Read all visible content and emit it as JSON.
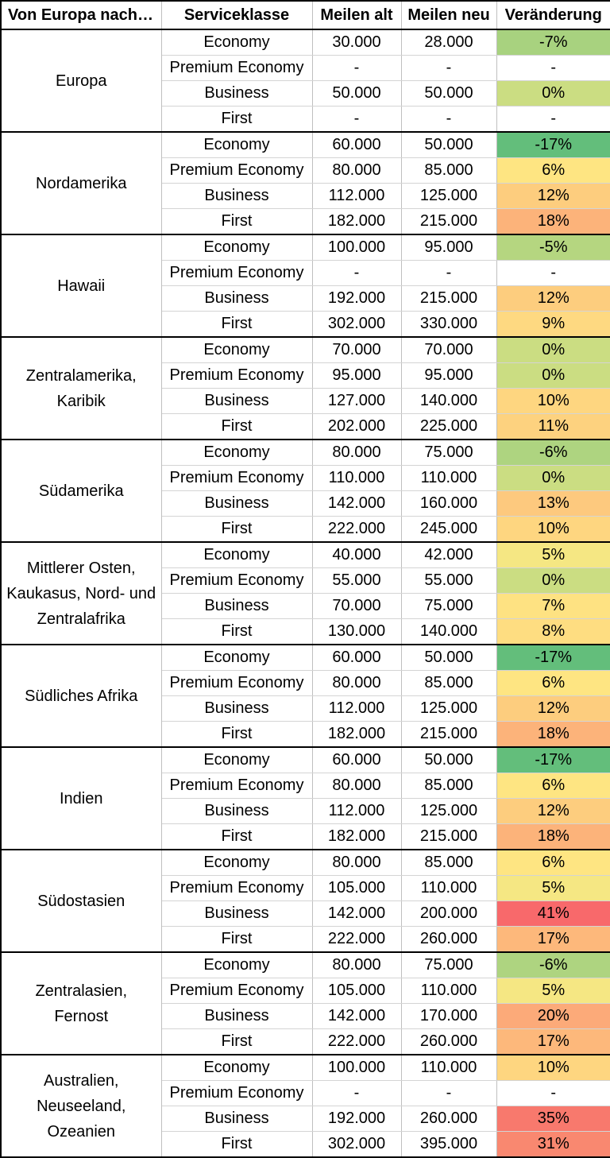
{
  "headers": [
    "Von Europa nach…",
    "Serviceklasse",
    "Meilen alt",
    "Meilen neu",
    "Veränderung"
  ],
  "color_scale": {
    "-17%": "#63be7b",
    "-7%": "#a8d27f",
    "-6%": "#aed480",
    "-5%": "#b5d680",
    "0%": "#cbdd82",
    "5%": "#f5e783",
    "6%": "#fee582",
    "7%": "#fee282",
    "8%": "#fedd81",
    "9%": "#fed981",
    "10%": "#fed680",
    "11%": "#fdd27f",
    "12%": "#fdcd7e",
    "13%": "#fdc97e",
    "17%": "#fdb87b",
    "18%": "#fcb37a",
    "20%": "#fcaa79",
    "31%": "#f98870",
    "35%": "#f8796d",
    "41%": "#f8696b",
    "empty": "#ffffff"
  },
  "groups": [
    {
      "region": "Europa",
      "rows": [
        {
          "class": "Economy",
          "old": "30.000",
          "new": "28.000",
          "change": "-7%"
        },
        {
          "class": "Premium Economy",
          "old": "-",
          "new": "-",
          "change": "-"
        },
        {
          "class": "Business",
          "old": "50.000",
          "new": "50.000",
          "change": "0%"
        },
        {
          "class": "First",
          "old": "-",
          "new": "-",
          "change": "-"
        }
      ]
    },
    {
      "region": "Nordamerika",
      "rows": [
        {
          "class": "Economy",
          "old": "60.000",
          "new": "50.000",
          "change": "-17%"
        },
        {
          "class": "Premium Economy",
          "old": "80.000",
          "new": "85.000",
          "change": "6%"
        },
        {
          "class": "Business",
          "old": "112.000",
          "new": "125.000",
          "change": "12%"
        },
        {
          "class": "First",
          "old": "182.000",
          "new": "215.000",
          "change": "18%"
        }
      ]
    },
    {
      "region": "Hawaii",
      "rows": [
        {
          "class": "Economy",
          "old": "100.000",
          "new": "95.000",
          "change": "-5%"
        },
        {
          "class": "Premium Economy",
          "old": "-",
          "new": "-",
          "change": "-"
        },
        {
          "class": "Business",
          "old": "192.000",
          "new": "215.000",
          "change": "12%"
        },
        {
          "class": "First",
          "old": "302.000",
          "new": "330.000",
          "change": "9%"
        }
      ]
    },
    {
      "region": "Zentralamerika, Karibik",
      "rows": [
        {
          "class": "Economy",
          "old": "70.000",
          "new": "70.000",
          "change": "0%"
        },
        {
          "class": "Premium Economy",
          "old": "95.000",
          "new": "95.000",
          "change": "0%"
        },
        {
          "class": "Business",
          "old": "127.000",
          "new": "140.000",
          "change": "10%"
        },
        {
          "class": "First",
          "old": "202.000",
          "new": "225.000",
          "change": "11%"
        }
      ]
    },
    {
      "region": "Südamerika",
      "rows": [
        {
          "class": "Economy",
          "old": "80.000",
          "new": "75.000",
          "change": "-6%"
        },
        {
          "class": "Premium Economy",
          "old": "110.000",
          "new": "110.000",
          "change": "0%"
        },
        {
          "class": "Business",
          "old": "142.000",
          "new": "160.000",
          "change": "13%"
        },
        {
          "class": "First",
          "old": "222.000",
          "new": "245.000",
          "change": "10%"
        }
      ]
    },
    {
      "region": "Mittlerer Osten, Kaukasus, Nord- und Zentralafrika",
      "rows": [
        {
          "class": "Economy",
          "old": "40.000",
          "new": "42.000",
          "change": "5%"
        },
        {
          "class": "Premium Economy",
          "old": "55.000",
          "new": "55.000",
          "change": "0%"
        },
        {
          "class": "Business",
          "old": "70.000",
          "new": "75.000",
          "change": "7%"
        },
        {
          "class": "First",
          "old": "130.000",
          "new": "140.000",
          "change": "8%"
        }
      ]
    },
    {
      "region": "Südliches Afrika",
      "rows": [
        {
          "class": "Economy",
          "old": "60.000",
          "new": "50.000",
          "change": "-17%"
        },
        {
          "class": "Premium Economy",
          "old": "80.000",
          "new": "85.000",
          "change": "6%"
        },
        {
          "class": "Business",
          "old": "112.000",
          "new": "125.000",
          "change": "12%"
        },
        {
          "class": "First",
          "old": "182.000",
          "new": "215.000",
          "change": "18%"
        }
      ]
    },
    {
      "region": "Indien",
      "rows": [
        {
          "class": "Economy",
          "old": "60.000",
          "new": "50.000",
          "change": "-17%"
        },
        {
          "class": "Premium Economy",
          "old": "80.000",
          "new": "85.000",
          "change": "6%"
        },
        {
          "class": "Business",
          "old": "112.000",
          "new": "125.000",
          "change": "12%"
        },
        {
          "class": "First",
          "old": "182.000",
          "new": "215.000",
          "change": "18%"
        }
      ]
    },
    {
      "region": "Südostasien",
      "rows": [
        {
          "class": "Economy",
          "old": "80.000",
          "new": "85.000",
          "change": "6%"
        },
        {
          "class": "Premium Economy",
          "old": "105.000",
          "new": "110.000",
          "change": "5%"
        },
        {
          "class": "Business",
          "old": "142.000",
          "new": "200.000",
          "change": "41%"
        },
        {
          "class": "First",
          "old": "222.000",
          "new": "260.000",
          "change": "17%"
        }
      ]
    },
    {
      "region": "Zentralasien, Fernost",
      "rows": [
        {
          "class": "Economy",
          "old": "80.000",
          "new": "75.000",
          "change": "-6%"
        },
        {
          "class": "Premium Economy",
          "old": "105.000",
          "new": "110.000",
          "change": "5%"
        },
        {
          "class": "Business",
          "old": "142.000",
          "new": "170.000",
          "change": "20%"
        },
        {
          "class": "First",
          "old": "222.000",
          "new": "260.000",
          "change": "17%"
        }
      ]
    },
    {
      "region": "Australien, Neuseeland, Ozeanien",
      "rows": [
        {
          "class": "Economy",
          "old": "100.000",
          "new": "110.000",
          "change": "10%"
        },
        {
          "class": "Premium Economy",
          "old": "-",
          "new": "-",
          "change": "-"
        },
        {
          "class": "Business",
          "old": "192.000",
          "new": "260.000",
          "change": "35%"
        },
        {
          "class": "First",
          "old": "302.000",
          "new": "395.000",
          "change": "31%"
        }
      ]
    }
  ]
}
